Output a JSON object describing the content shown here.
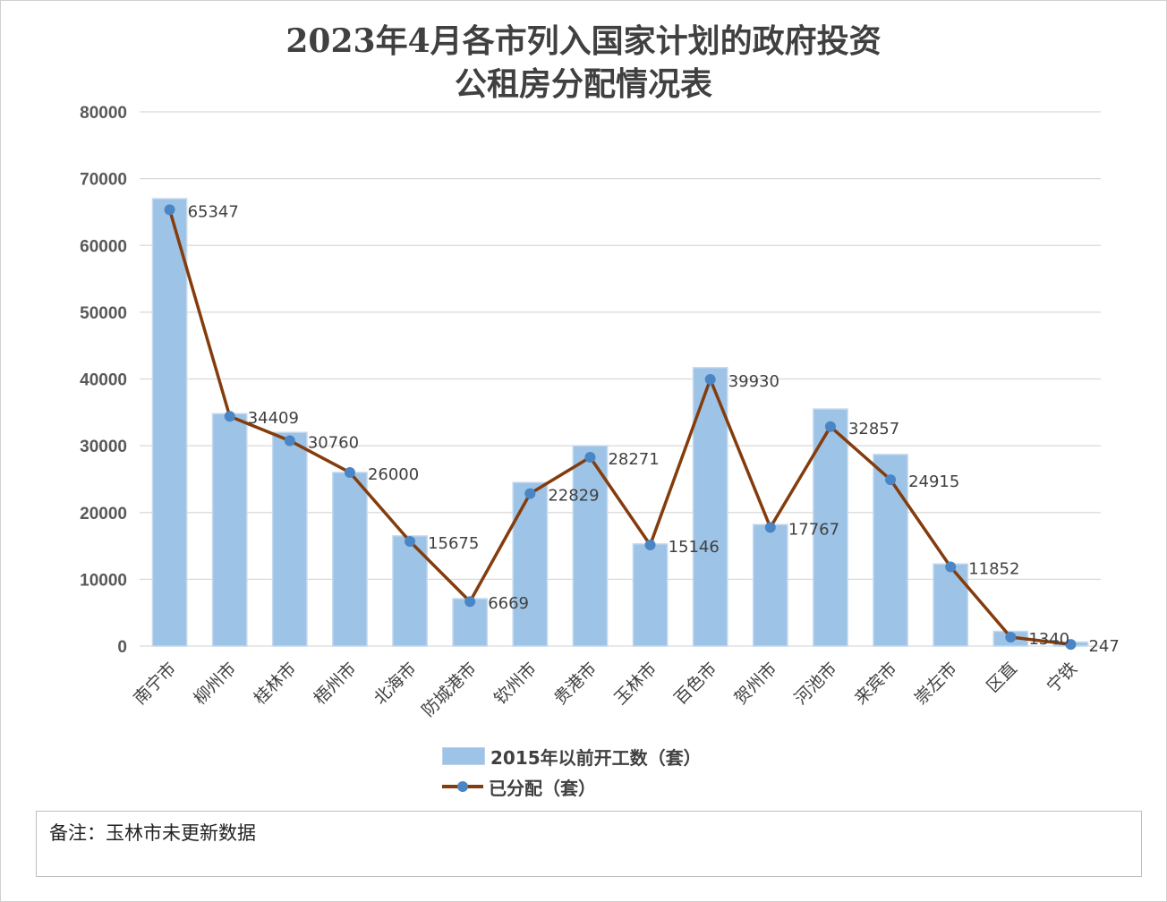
{
  "chart_data": {
    "type": "bar",
    "title_line1": "2023年4月各市列入国家计划的政府投资",
    "title_line2": "公租房分配情况表",
    "categories": [
      "南宁市",
      "柳州市",
      "桂林市",
      "梧州市",
      "北海市",
      "防城港市",
      "钦州市",
      "贵港市",
      "玉林市",
      "百色市",
      "贺州市",
      "河池市",
      "来宾市",
      "崇左市",
      "区直",
      "宁铁"
    ],
    "series": [
      {
        "name": "2015年以前开工数（套）",
        "kind": "bar",
        "color": "#9dc3e6",
        "values": [
          67000,
          34800,
          32000,
          26000,
          16500,
          7100,
          24500,
          30000,
          15300,
          41700,
          18200,
          35500,
          28700,
          12300,
          2200,
          600
        ]
      },
      {
        "name": "已分配（套）",
        "kind": "line",
        "color": "#843c0c",
        "marker_color": "#4a86c5",
        "values": [
          65347,
          34409,
          30760,
          26000,
          15675,
          6669,
          22829,
          28271,
          15146,
          39930,
          17767,
          32857,
          24915,
          11852,
          1340,
          247
        ]
      }
    ],
    "ylim": [
      0,
      80000
    ],
    "yticks": [
      0,
      10000,
      20000,
      30000,
      40000,
      50000,
      60000,
      70000,
      80000
    ],
    "grid": true,
    "legend_position": "bottom"
  },
  "note": "备注：玉林市未更新数据"
}
